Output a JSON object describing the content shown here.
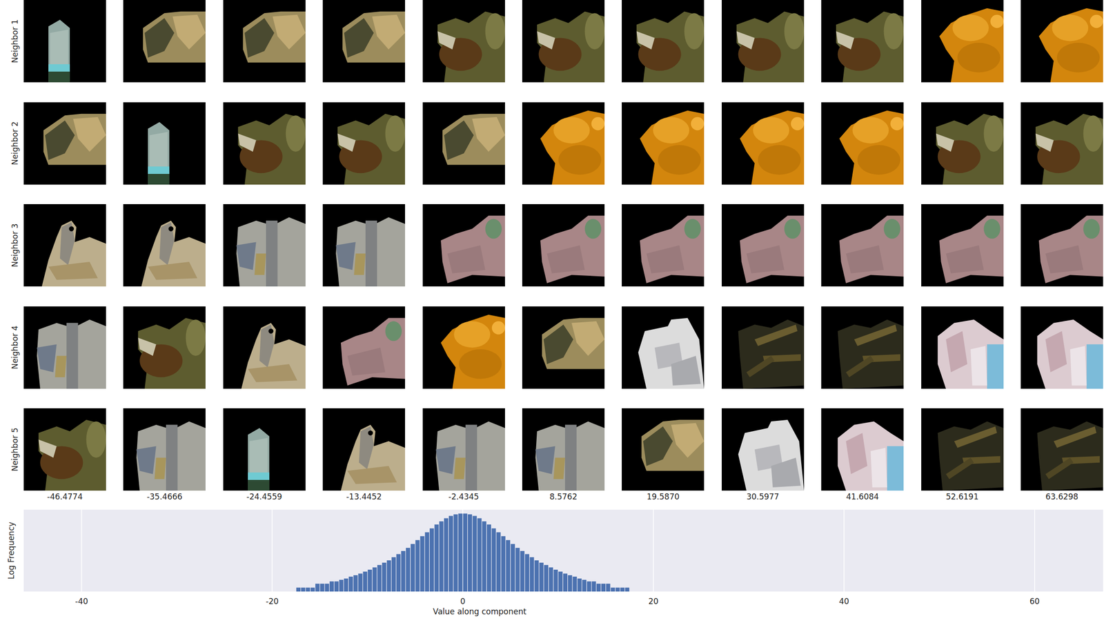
{
  "chart_data": {
    "type": "histogram",
    "xlabel": "Value along component",
    "ylabel": "Log Frequency",
    "bins": [
      -17.5,
      -17,
      -16.5,
      -16,
      -15.5,
      -15,
      -14.5,
      -14,
      -13.5,
      -13,
      -12.5,
      -12,
      -11.5,
      -11,
      -10.5,
      -10,
      -9.5,
      -9,
      -8.5,
      -8,
      -7.5,
      -7,
      -6.5,
      -6,
      -5.5,
      -5,
      -4.5,
      -4,
      -3.5,
      -3,
      -2.5,
      -2,
      -1.5,
      -1,
      -0.5,
      0,
      0.5,
      1,
      1.5,
      2,
      2.5,
      3,
      3.5,
      4,
      4.5,
      5,
      5.5,
      6,
      6.5,
      7,
      7.5,
      8,
      8.5,
      9,
      9.5,
      10,
      10.5,
      11,
      11.5,
      12,
      12.5,
      13,
      13.5,
      14,
      14.5,
      15,
      15.5,
      16,
      16.5,
      17,
      17.5
    ],
    "values": [
      1,
      1,
      1,
      1,
      2,
      2,
      2,
      3,
      3,
      4,
      5,
      7,
      9,
      12,
      17,
      24,
      36,
      55,
      83,
      126,
      219,
      380,
      661,
      1150,
      2290,
      4570,
      9120,
      18200,
      36300,
      72400,
      126000,
      219000,
      331000,
      437000,
      501000,
      501000,
      437000,
      331000,
      219000,
      126000,
      72400,
      36300,
      18200,
      9120,
      4570,
      2290,
      1150,
      661,
      380,
      219,
      126,
      83,
      55,
      36,
      24,
      17,
      12,
      9,
      7,
      5,
      4,
      3,
      3,
      2,
      2,
      2,
      1,
      1,
      1,
      1
    ],
    "color": "#4c72b0",
    "xlim": [
      -46.07,
      67.18
    ],
    "xticks": [
      -40,
      -20,
      0,
      20,
      40,
      60
    ],
    "ylim": [
      0.5,
      1000000
    ],
    "log": "y",
    "grid": true,
    "tick_labels": "x"
  },
  "image_grid": {
    "row_labels": [
      "Neighbor 1",
      "Neighbor 2",
      "Neighbor 3",
      "Neighbor 4",
      "Neighbor 5"
    ],
    "column_values": [
      {
        "value": -46.4774,
        "label": "-46.4774"
      },
      {
        "value": -35.4666,
        "label": "-35.4666"
      },
      {
        "value": -24.4559,
        "label": "-24.4559"
      },
      {
        "value": -13.4452,
        "label": "-13.4452"
      },
      {
        "value": -2.4345,
        "label": "-2.4345"
      },
      {
        "value": 8.5762,
        "label": "8.5762"
      },
      {
        "value": 19.587,
        "label": "19.5870"
      },
      {
        "value": 30.5977,
        "label": "30.5977"
      },
      {
        "value": 41.6084,
        "label": "41.6084"
      },
      {
        "value": 52.6191,
        "label": "52.6191"
      },
      {
        "value": 63.6298,
        "label": "63.6298"
      }
    ]
  }
}
